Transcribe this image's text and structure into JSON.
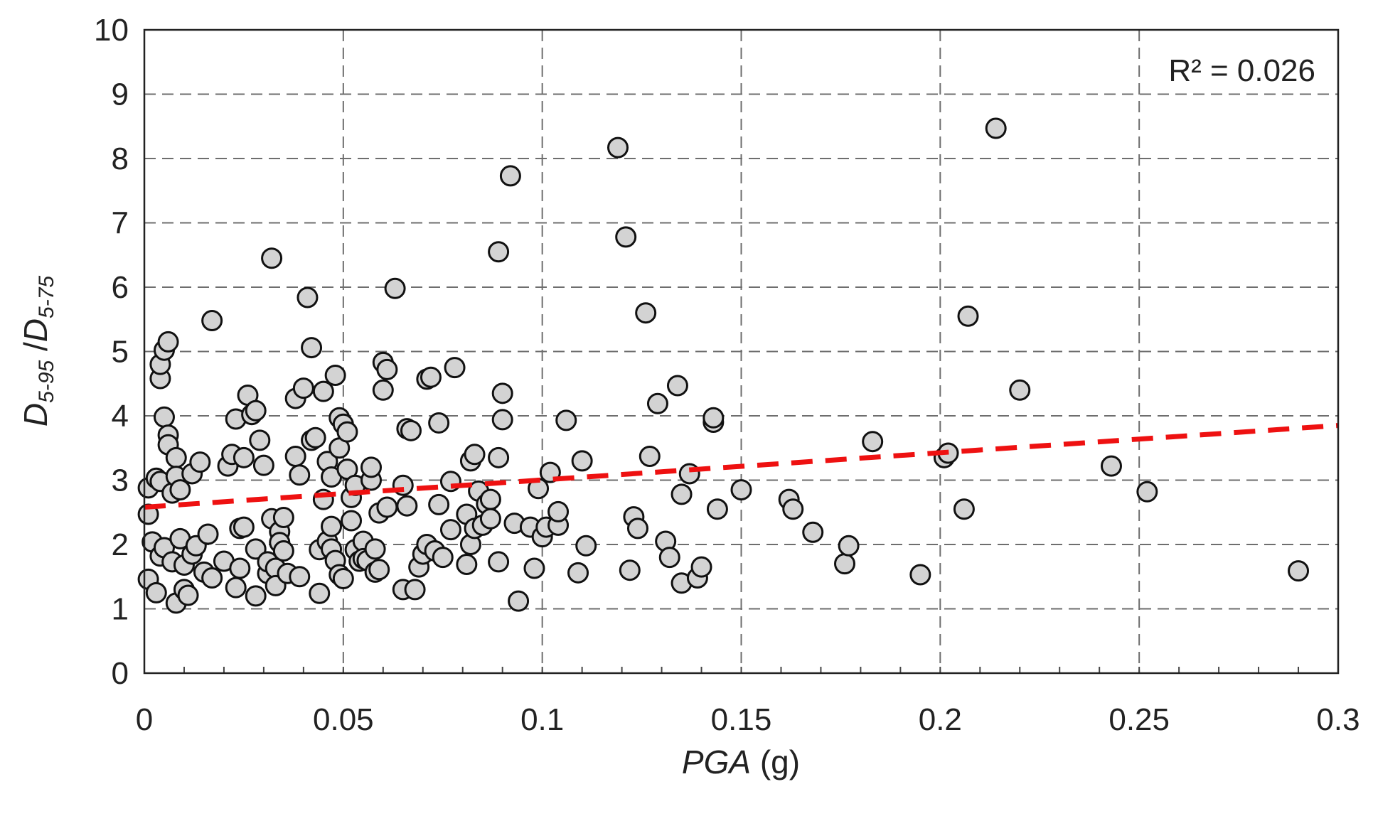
{
  "chart_data": {
    "type": "scatter",
    "xlim": [
      0,
      0.3
    ],
    "ylim": [
      0,
      10
    ],
    "x_ticks": [
      0,
      0.05,
      0.1,
      0.15,
      0.2,
      0.25,
      0.3
    ],
    "x_tick_labels": [
      "0",
      "0.05",
      "0.1",
      "0.15",
      "0.2",
      "0.25",
      "0.3"
    ],
    "y_ticks": [
      0,
      1,
      2,
      3,
      4,
      5,
      6,
      7,
      8,
      9,
      10
    ],
    "y_tick_labels": [
      "0",
      "1",
      "2",
      "3",
      "4",
      "5",
      "6",
      "7",
      "8",
      "9",
      "10"
    ],
    "xlabel": {
      "main": "PGA",
      "unit": " (g)"
    },
    "ylabel": {
      "d1": "D",
      "sub1": "5-95",
      "slash": " /",
      "d2": "D",
      "sub2": "5-75"
    },
    "annotation": "R² = 0.026",
    "grid": true,
    "marker_color": "#d3d3d3",
    "trend_color": "#ee1111",
    "trendline": {
      "x": [
        0,
        0.3
      ],
      "y": [
        2.58,
        3.85
      ]
    },
    "points": [
      [
        0.001,
        2.88
      ],
      [
        0.001,
        2.47
      ],
      [
        0.001,
        1.46
      ],
      [
        0.002,
        2.04
      ],
      [
        0.003,
        3.03
      ],
      [
        0.003,
        1.25
      ],
      [
        0.004,
        1.82
      ],
      [
        0.004,
        4.58
      ],
      [
        0.004,
        4.8
      ],
      [
        0.004,
        2.98
      ],
      [
        0.005,
        5.02
      ],
      [
        0.005,
        1.95
      ],
      [
        0.006,
        5.15
      ],
      [
        0.005,
        3.98
      ],
      [
        0.006,
        3.7
      ],
      [
        0.006,
        3.55
      ],
      [
        0.007,
        2.8
      ],
      [
        0.007,
        1.73
      ],
      [
        0.008,
        1.09
      ],
      [
        0.008,
        3.35
      ],
      [
        0.008,
        3.06
      ],
      [
        0.009,
        2.85
      ],
      [
        0.009,
        2.09
      ],
      [
        0.01,
        1.68
      ],
      [
        0.01,
        1.3
      ],
      [
        0.011,
        1.21
      ],
      [
        0.012,
        3.1
      ],
      [
        0.012,
        1.85
      ],
      [
        0.013,
        1.98
      ],
      [
        0.014,
        3.28
      ],
      [
        0.015,
        1.57
      ],
      [
        0.016,
        2.16
      ],
      [
        0.017,
        1.48
      ],
      [
        0.017,
        5.48
      ],
      [
        0.02,
        1.74
      ],
      [
        0.021,
        3.22
      ],
      [
        0.022,
        3.4
      ],
      [
        0.023,
        3.95
      ],
      [
        0.023,
        1.33
      ],
      [
        0.024,
        2.25
      ],
      [
        0.024,
        1.63
      ],
      [
        0.025,
        3.35
      ],
      [
        0.025,
        2.27
      ],
      [
        0.026,
        4.32
      ],
      [
        0.027,
        4.02
      ],
      [
        0.028,
        4.08
      ],
      [
        0.028,
        1.93
      ],
      [
        0.028,
        1.2
      ],
      [
        0.029,
        3.62
      ],
      [
        0.03,
        3.23
      ],
      [
        0.031,
        1.55
      ],
      [
        0.031,
        1.73
      ],
      [
        0.032,
        6.45
      ],
      [
        0.032,
        2.4
      ],
      [
        0.033,
        1.63
      ],
      [
        0.033,
        1.36
      ],
      [
        0.034,
        2.2
      ],
      [
        0.034,
        2.03
      ],
      [
        0.035,
        1.9
      ],
      [
        0.035,
        2.42
      ],
      [
        0.036,
        1.55
      ],
      [
        0.038,
        4.27
      ],
      [
        0.038,
        3.37
      ],
      [
        0.039,
        3.08
      ],
      [
        0.039,
        1.5
      ],
      [
        0.04,
        4.43
      ],
      [
        0.041,
        5.84
      ],
      [
        0.042,
        3.62
      ],
      [
        0.042,
        5.06
      ],
      [
        0.043,
        3.66
      ],
      [
        0.044,
        1.92
      ],
      [
        0.044,
        1.24
      ],
      [
        0.045,
        4.38
      ],
      [
        0.045,
        2.7
      ],
      [
        0.046,
        2.05
      ],
      [
        0.046,
        3.29
      ],
      [
        0.047,
        3.05
      ],
      [
        0.047,
        1.93
      ],
      [
        0.047,
        2.28
      ],
      [
        0.048,
        1.75
      ],
      [
        0.048,
        4.63
      ],
      [
        0.049,
        3.5
      ],
      [
        0.049,
        1.53
      ],
      [
        0.049,
        3.97
      ],
      [
        0.05,
        3.87
      ],
      [
        0.05,
        1.47
      ],
      [
        0.051,
        3.75
      ],
      [
        0.051,
        3.17
      ],
      [
        0.052,
        2.73
      ],
      [
        0.052,
        2.37
      ],
      [
        0.053,
        2.92
      ],
      [
        0.053,
        1.92
      ],
      [
        0.054,
        1.74
      ],
      [
        0.055,
        2.05
      ],
      [
        0.055,
        1.78
      ],
      [
        0.056,
        1.75
      ],
      [
        0.057,
        3.0
      ],
      [
        0.057,
        3.2
      ],
      [
        0.058,
        1.57
      ],
      [
        0.058,
        1.93
      ],
      [
        0.059,
        2.49
      ],
      [
        0.059,
        1.61
      ],
      [
        0.06,
        4.83
      ],
      [
        0.06,
        4.4
      ],
      [
        0.061,
        4.72
      ],
      [
        0.061,
        2.58
      ],
      [
        0.063,
        5.98
      ],
      [
        0.065,
        2.92
      ],
      [
        0.065,
        1.3
      ],
      [
        0.066,
        3.8
      ],
      [
        0.066,
        2.6
      ],
      [
        0.067,
        3.77
      ],
      [
        0.068,
        1.3
      ],
      [
        0.069,
        1.65
      ],
      [
        0.07,
        1.85
      ],
      [
        0.071,
        4.57
      ],
      [
        0.071,
        2.0
      ],
      [
        0.072,
        4.6
      ],
      [
        0.073,
        1.9
      ],
      [
        0.074,
        3.89
      ],
      [
        0.074,
        2.62
      ],
      [
        0.075,
        1.8
      ],
      [
        0.077,
        2.98
      ],
      [
        0.077,
        2.23
      ],
      [
        0.078,
        4.75
      ],
      [
        0.081,
        1.69
      ],
      [
        0.081,
        2.47
      ],
      [
        0.082,
        3.3
      ],
      [
        0.082,
        2.0
      ],
      [
        0.083,
        3.4
      ],
      [
        0.083,
        2.25
      ],
      [
        0.084,
        2.83
      ],
      [
        0.085,
        2.3
      ],
      [
        0.086,
        2.63
      ],
      [
        0.087,
        2.7
      ],
      [
        0.087,
        2.4
      ],
      [
        0.089,
        6.55
      ],
      [
        0.089,
        3.35
      ],
      [
        0.089,
        1.73
      ],
      [
        0.09,
        4.35
      ],
      [
        0.09,
        3.94
      ],
      [
        0.092,
        7.73
      ],
      [
        0.093,
        2.33
      ],
      [
        0.094,
        1.12
      ],
      [
        0.097,
        2.27
      ],
      [
        0.098,
        1.63
      ],
      [
        0.099,
        2.87
      ],
      [
        0.1,
        2.12
      ],
      [
        0.101,
        2.27
      ],
      [
        0.102,
        3.12
      ],
      [
        0.104,
        2.3
      ],
      [
        0.104,
        2.51
      ],
      [
        0.106,
        3.93
      ],
      [
        0.109,
        1.56
      ],
      [
        0.11,
        3.3
      ],
      [
        0.111,
        1.98
      ],
      [
        0.119,
        8.17
      ],
      [
        0.121,
        6.78
      ],
      [
        0.122,
        1.6
      ],
      [
        0.123,
        2.43
      ],
      [
        0.124,
        2.25
      ],
      [
        0.126,
        5.6
      ],
      [
        0.127,
        3.37
      ],
      [
        0.129,
        4.19
      ],
      [
        0.131,
        2.05
      ],
      [
        0.132,
        1.8
      ],
      [
        0.134,
        4.47
      ],
      [
        0.135,
        1.4
      ],
      [
        0.135,
        2.78
      ],
      [
        0.137,
        3.1
      ],
      [
        0.139,
        1.48
      ],
      [
        0.14,
        1.65
      ],
      [
        0.143,
        3.9
      ],
      [
        0.143,
        3.97
      ],
      [
        0.144,
        2.55
      ],
      [
        0.15,
        2.85
      ],
      [
        0.162,
        2.7
      ],
      [
        0.163,
        2.55
      ],
      [
        0.168,
        2.19
      ],
      [
        0.176,
        1.7
      ],
      [
        0.177,
        1.98
      ],
      [
        0.183,
        3.6
      ],
      [
        0.195,
        1.53
      ],
      [
        0.201,
        3.35
      ],
      [
        0.202,
        3.42
      ],
      [
        0.206,
        2.55
      ],
      [
        0.207,
        5.55
      ],
      [
        0.214,
        8.47
      ],
      [
        0.22,
        4.4
      ],
      [
        0.243,
        3.22
      ],
      [
        0.252,
        2.82
      ],
      [
        0.29,
        1.59
      ]
    ]
  }
}
